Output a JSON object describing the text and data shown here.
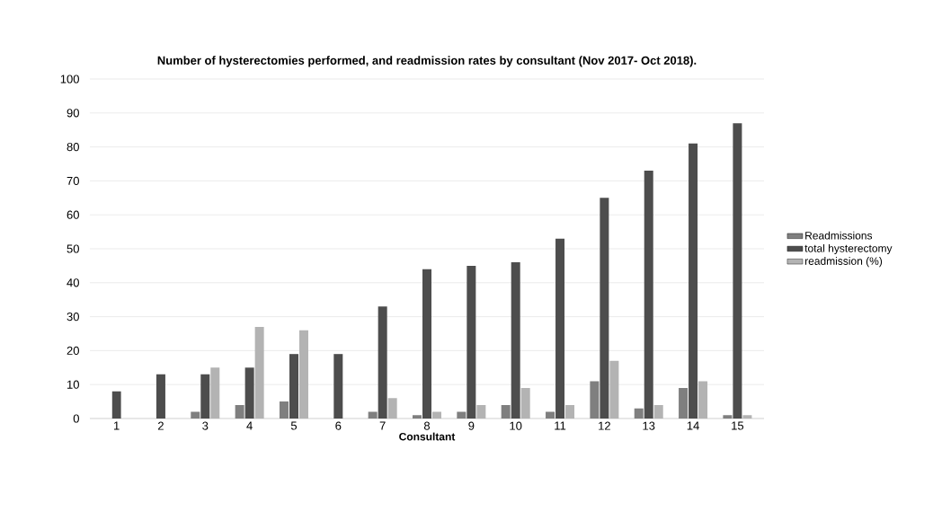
{
  "chart_data": {
    "type": "bar",
    "title": "Number of hysterectomies performed, and readmission rates by consultant (Nov 2017- Oct 2018).",
    "xlabel": "Consultant",
    "categories": [
      "1",
      "2",
      "3",
      "4",
      "5",
      "6",
      "7",
      "8",
      "9",
      "10",
      "11",
      "12",
      "13",
      "14",
      "15"
    ],
    "series": [
      {
        "name": "Readmissions",
        "color": "#7f7f7f",
        "values": [
          0,
          0,
          2,
          4,
          5,
          0,
          2,
          1,
          2,
          4,
          2,
          11,
          3,
          9,
          1
        ]
      },
      {
        "name": "total hysterectomy",
        "color": "#4d4d4d",
        "values": [
          8,
          13,
          13,
          15,
          19,
          19,
          33,
          44,
          45,
          46,
          53,
          65,
          73,
          81,
          87
        ]
      },
      {
        "name": "readmission (%)",
        "color": "#b3b3b3",
        "values": [
          0,
          0,
          15,
          27,
          26,
          0,
          6,
          2,
          4,
          9,
          4,
          17,
          4,
          11,
          1
        ]
      }
    ],
    "ylim": [
      0,
      100
    ],
    "yticks": [
      0,
      10,
      20,
      30,
      40,
      50,
      60,
      70,
      80,
      90,
      100
    ],
    "grid": "y",
    "legend": "right"
  }
}
